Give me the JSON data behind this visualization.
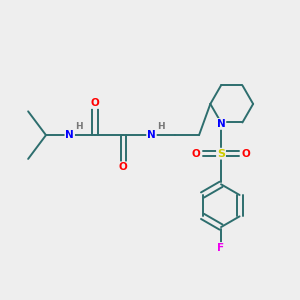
{
  "background_color": "#eeeeee",
  "bond_color": "#2d6e6e",
  "atom_colors": {
    "N": "#0000ff",
    "O": "#ff0000",
    "S": "#cccc00",
    "F": "#ee00ee",
    "H": "#777777",
    "C": "#2d6e6e"
  },
  "bond_lw": 1.4,
  "font_size": 7.5
}
